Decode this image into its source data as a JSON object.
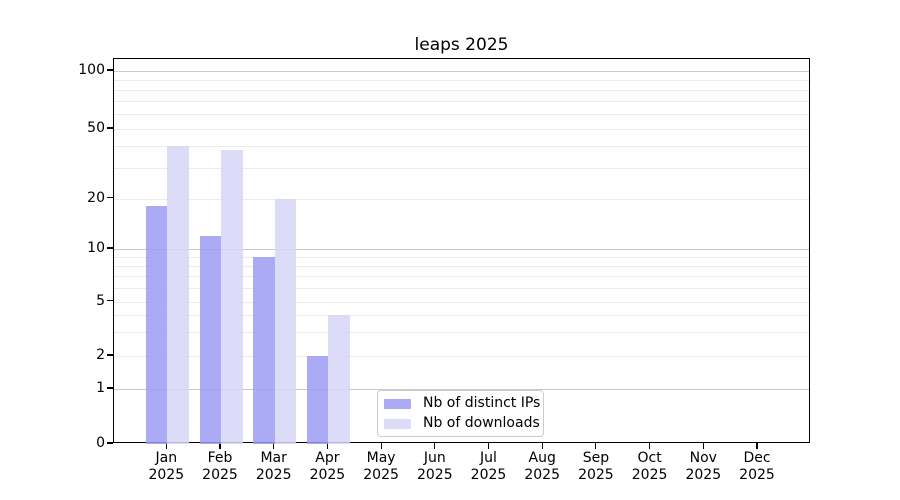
{
  "title": "leaps 2025",
  "chart_data": {
    "type": "bar",
    "title": "leaps 2025",
    "categories": [
      "Jan",
      "Feb",
      "Mar",
      "Apr",
      "May",
      "Jun",
      "Jul",
      "Aug",
      "Sep",
      "Oct",
      "Nov",
      "Dec"
    ],
    "year_label": "2025",
    "series": [
      {
        "key": "distinct-ips",
        "name": "Nb of distinct IPs",
        "color": "#aaaaf5",
        "values": [
          18,
          12,
          9,
          2,
          null,
          null,
          null,
          null,
          null,
          null,
          null,
          null
        ]
      },
      {
        "key": "downloads",
        "name": "Nb of downloads",
        "color": "#dcdcf9",
        "values": [
          40,
          38,
          20,
          4,
          null,
          null,
          null,
          null,
          null,
          null,
          null,
          null
        ]
      }
    ],
    "y_axis": {
      "scale": "log-like",
      "ticks": [
        0,
        1,
        2,
        5,
        10,
        20,
        50,
        100
      ],
      "major_gridlines": [
        1,
        10,
        100
      ],
      "minor_gridlines": [
        2,
        3,
        4,
        5,
        6,
        7,
        8,
        9,
        20,
        30,
        40,
        50,
        60,
        70,
        80,
        90
      ],
      "ylim": [
        0,
        115
      ]
    },
    "legend": {
      "position": "lower center-left",
      "entries": [
        "Nb of distinct IPs",
        "Nb of downloads"
      ]
    },
    "grid": true
  },
  "colors": {
    "major_grid": "#c9c9c9",
    "minor_grid": "#ebebeb",
    "spine": "#000000",
    "bar_distinct_ips": "#aaaaf5",
    "bar_downloads": "#dcdcf9"
  }
}
